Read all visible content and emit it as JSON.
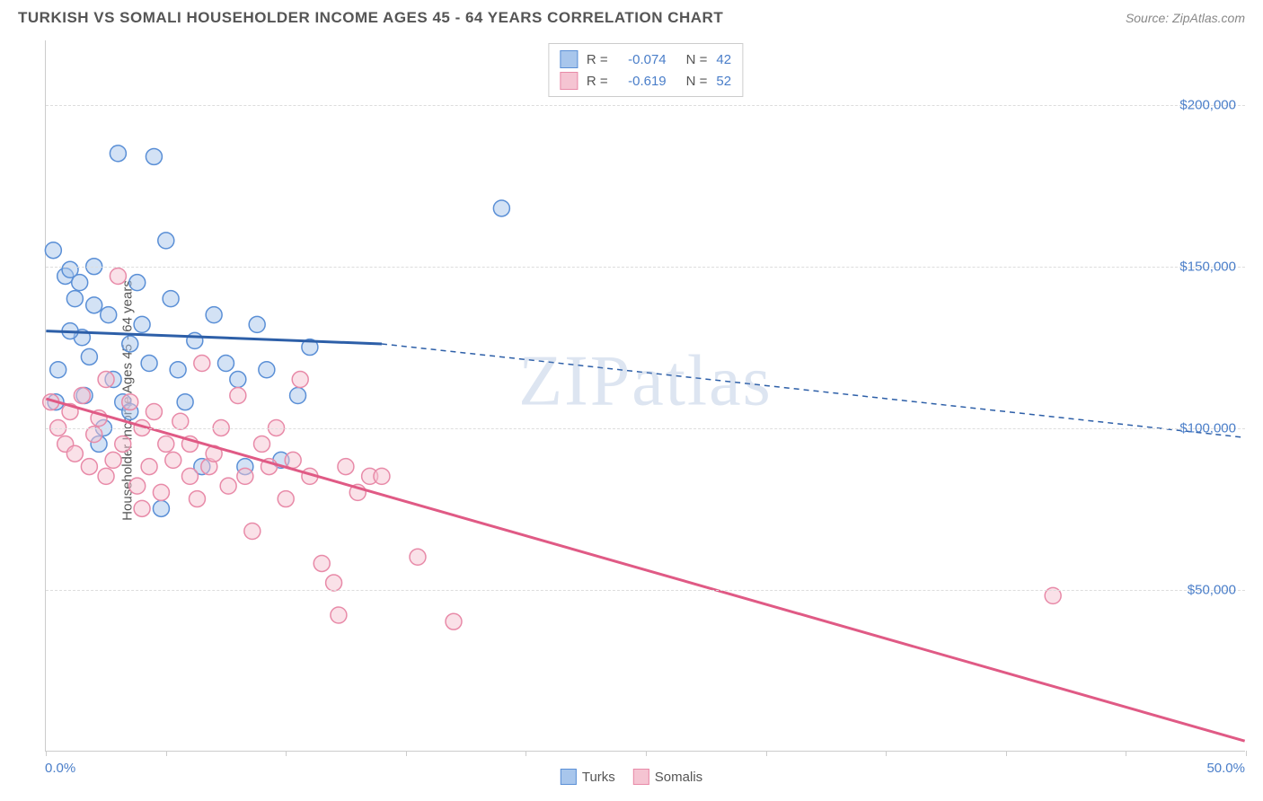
{
  "header": {
    "title": "TURKISH VS SOMALI HOUSEHOLDER INCOME AGES 45 - 64 YEARS CORRELATION CHART",
    "source": "Source: ZipAtlas.com"
  },
  "chart": {
    "type": "scatter",
    "y_axis_label": "Householder Income Ages 45 - 64 years",
    "watermark": "ZIPatlas",
    "background_color": "#ffffff",
    "grid_color": "#dddddd",
    "axis_color": "#cccccc",
    "x_range": [
      0,
      50
    ],
    "y_range": [
      0,
      220000
    ],
    "x_ticks": [
      0,
      5,
      10,
      15,
      20,
      25,
      30,
      35,
      40,
      45,
      50
    ],
    "x_tick_labels": {
      "left": "0.0%",
      "right": "50.0%"
    },
    "y_gridlines": [
      50000,
      100000,
      150000,
      200000
    ],
    "y_tick_labels": [
      "$50,000",
      "$100,000",
      "$150,000",
      "$200,000"
    ],
    "marker_radius": 9,
    "marker_opacity": 0.5,
    "line_width": 3,
    "series": [
      {
        "name": "Turks",
        "color_fill": "#a8c6ec",
        "color_stroke": "#5a8fd6",
        "line_color": "#2d5fa8",
        "R": "-0.074",
        "N": "42",
        "trend_solid": {
          "x1": 0,
          "y1": 130000,
          "x2": 14,
          "y2": 126000
        },
        "trend_dashed": {
          "x1": 14,
          "y1": 126000,
          "x2": 50,
          "y2": 97000
        },
        "points": [
          [
            0.3,
            155000
          ],
          [
            0.4,
            108000
          ],
          [
            0.5,
            118000
          ],
          [
            0.8,
            147000
          ],
          [
            1.0,
            149000
          ],
          [
            1.2,
            140000
          ],
          [
            1.4,
            145000
          ],
          [
            1.5,
            128000
          ],
          [
            1.6,
            110000
          ],
          [
            1.8,
            122000
          ],
          [
            2.0,
            138000
          ],
          [
            2.2,
            95000
          ],
          [
            2.4,
            100000
          ],
          [
            2.6,
            135000
          ],
          [
            2.8,
            115000
          ],
          [
            3.0,
            185000
          ],
          [
            3.2,
            108000
          ],
          [
            3.5,
            126000
          ],
          [
            3.8,
            145000
          ],
          [
            4.0,
            132000
          ],
          [
            4.3,
            120000
          ],
          [
            4.5,
            184000
          ],
          [
            4.8,
            75000
          ],
          [
            5.0,
            158000
          ],
          [
            5.2,
            140000
          ],
          [
            5.5,
            118000
          ],
          [
            5.8,
            108000
          ],
          [
            6.2,
            127000
          ],
          [
            6.5,
            88000
          ],
          [
            7.0,
            135000
          ],
          [
            7.5,
            120000
          ],
          [
            8.0,
            115000
          ],
          [
            8.3,
            88000
          ],
          [
            8.8,
            132000
          ],
          [
            9.2,
            118000
          ],
          [
            9.8,
            90000
          ],
          [
            10.5,
            110000
          ],
          [
            11.0,
            125000
          ],
          [
            19.0,
            168000
          ],
          [
            2.0,
            150000
          ],
          [
            1.0,
            130000
          ],
          [
            3.5,
            105000
          ]
        ]
      },
      {
        "name": "Somalis",
        "color_fill": "#f5c4d2",
        "color_stroke": "#e88aa8",
        "line_color": "#e05a85",
        "R": "-0.619",
        "N": "52",
        "trend_solid": {
          "x1": 0,
          "y1": 109000,
          "x2": 50,
          "y2": 3000
        },
        "trend_dashed": null,
        "points": [
          [
            0.2,
            108000
          ],
          [
            0.5,
            100000
          ],
          [
            0.8,
            95000
          ],
          [
            1.0,
            105000
          ],
          [
            1.2,
            92000
          ],
          [
            1.5,
            110000
          ],
          [
            1.8,
            88000
          ],
          [
            2.0,
            98000
          ],
          [
            2.2,
            103000
          ],
          [
            2.5,
            85000
          ],
          [
            2.8,
            90000
          ],
          [
            3.0,
            147000
          ],
          [
            3.2,
            95000
          ],
          [
            3.5,
            108000
          ],
          [
            3.8,
            82000
          ],
          [
            4.0,
            100000
          ],
          [
            4.3,
            88000
          ],
          [
            4.5,
            105000
          ],
          [
            4.8,
            80000
          ],
          [
            5.0,
            95000
          ],
          [
            5.3,
            90000
          ],
          [
            5.6,
            102000
          ],
          [
            6.0,
            85000
          ],
          [
            6.3,
            78000
          ],
          [
            6.5,
            120000
          ],
          [
            6.8,
            88000
          ],
          [
            7.0,
            92000
          ],
          [
            7.3,
            100000
          ],
          [
            7.6,
            82000
          ],
          [
            8.0,
            110000
          ],
          [
            8.3,
            85000
          ],
          [
            8.6,
            68000
          ],
          [
            9.0,
            95000
          ],
          [
            9.3,
            88000
          ],
          [
            9.6,
            100000
          ],
          [
            10.0,
            78000
          ],
          [
            10.3,
            90000
          ],
          [
            10.6,
            115000
          ],
          [
            11.0,
            85000
          ],
          [
            11.5,
            58000
          ],
          [
            12.0,
            52000
          ],
          [
            12.5,
            88000
          ],
          [
            13.0,
            80000
          ],
          [
            13.5,
            85000
          ],
          [
            14.0,
            85000
          ],
          [
            15.5,
            60000
          ],
          [
            12.2,
            42000
          ],
          [
            17.0,
            40000
          ],
          [
            42.0,
            48000
          ],
          [
            2.5,
            115000
          ],
          [
            4.0,
            75000
          ],
          [
            6.0,
            95000
          ]
        ]
      }
    ],
    "bottom_legend": [
      {
        "label": "Turks",
        "fill": "#a8c6ec",
        "stroke": "#5a8fd6"
      },
      {
        "label": "Somalis",
        "fill": "#f5c4d2",
        "stroke": "#e88aa8"
      }
    ]
  }
}
